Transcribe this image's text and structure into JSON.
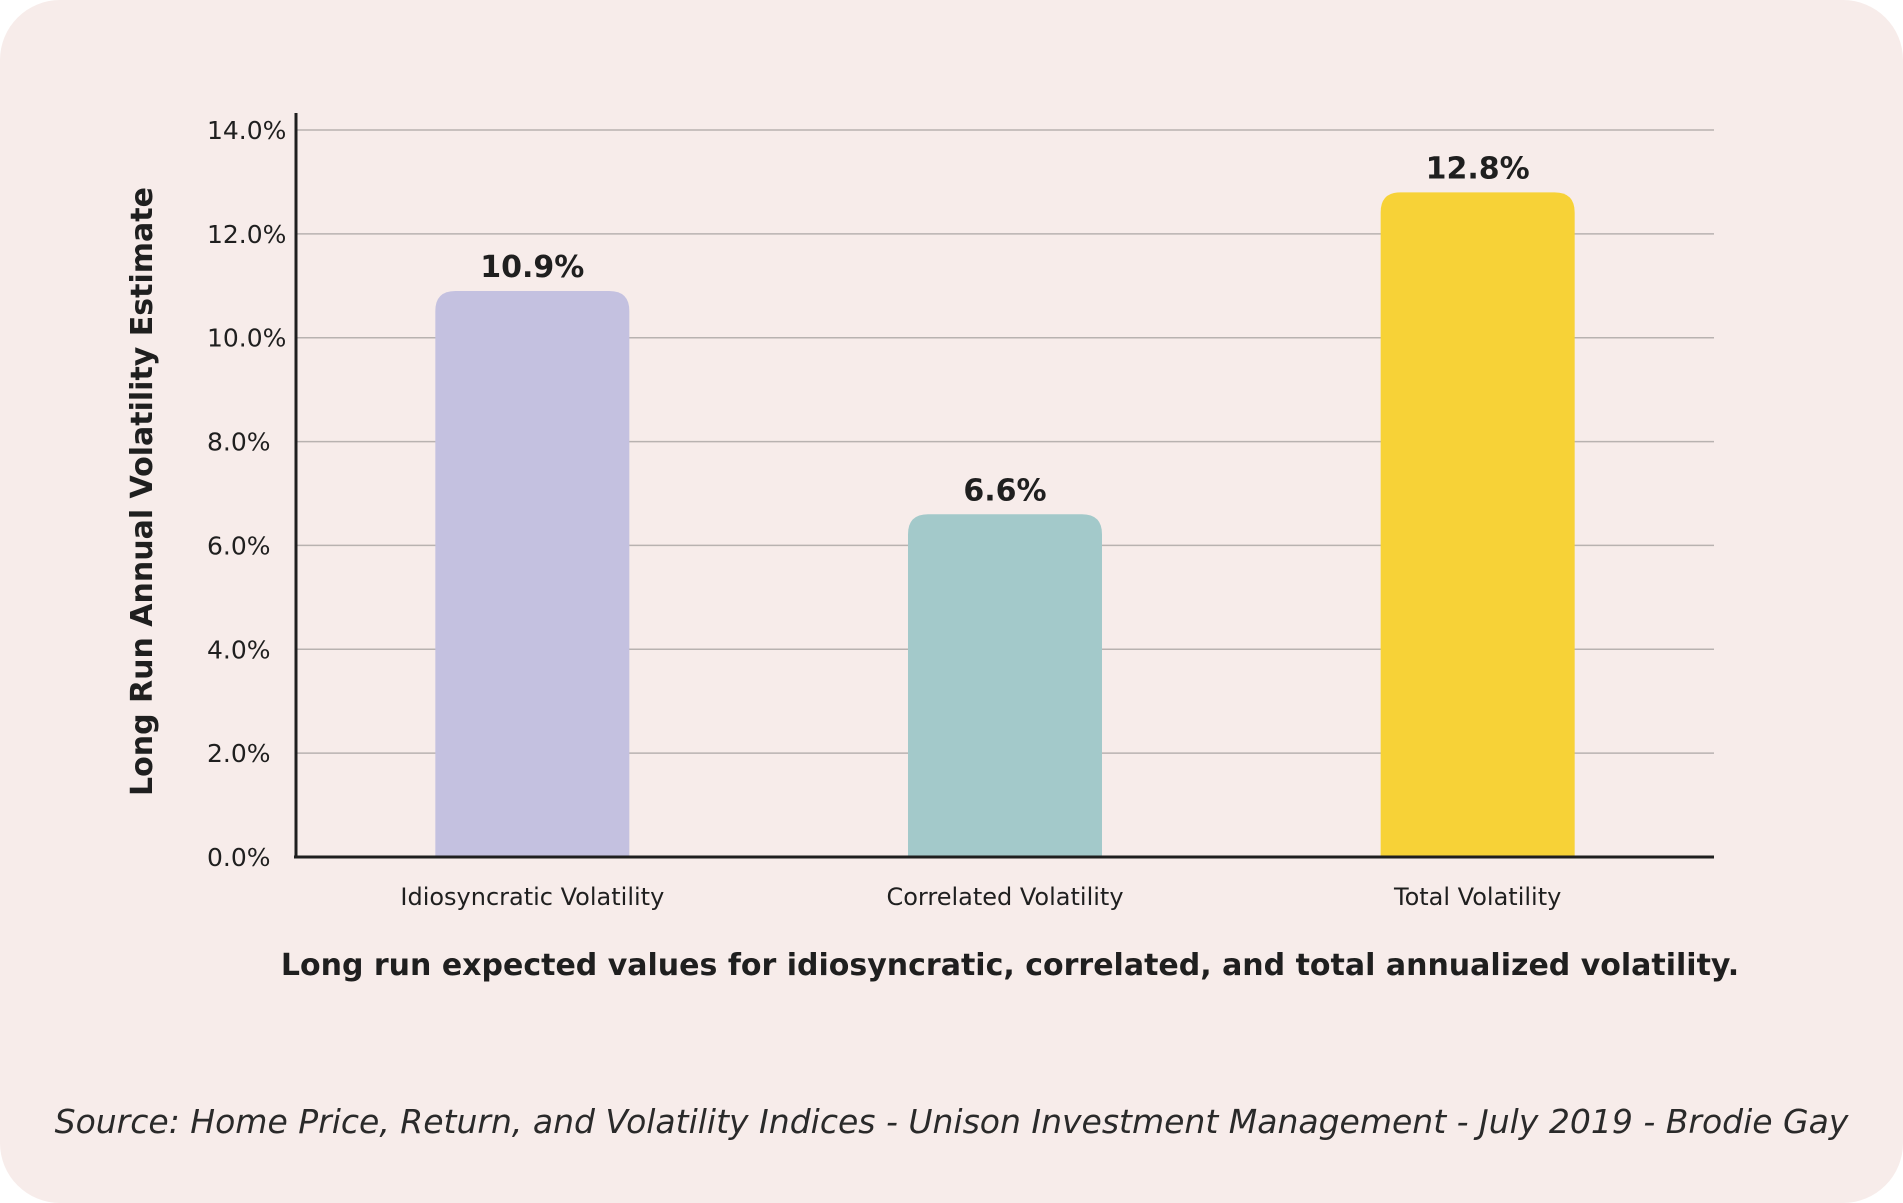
{
  "chart_data": {
    "type": "bar",
    "categories": [
      "Idiosyncratic Volatility",
      "Correlated Volatility",
      "Total Volatility"
    ],
    "values": [
      10.9,
      6.6,
      12.8
    ],
    "data_labels": [
      "10.9%",
      "6.6%",
      "12.8%"
    ],
    "colors": [
      "#c4c1e0",
      "#a3c9ca",
      "#f7d237"
    ],
    "ylabel": "Long Run Annual Volatility Estimate",
    "ylim": [
      0,
      14
    ],
    "yticks": [
      0,
      2,
      4,
      6,
      8,
      10,
      12,
      14
    ],
    "ytick_labels": [
      "0.0%",
      "2.0%",
      "4.0%",
      "6.0%",
      "8.0%",
      "10.0%",
      "12.0%",
      "14.0%"
    ],
    "grid": true,
    "legend": "none"
  },
  "caption": "Long run expected values for idiosyncratic, correlated, and total annualized volatility.",
  "source": "Source: Home Price, Return, and Volatility Indices - Unison Investment Management - July 2019 - Brodie Gay",
  "colors": {
    "background": "#f7ecea",
    "axis": "#1f1f1f",
    "gridline": "#b8b2b0",
    "text": "#1f1f1f"
  }
}
